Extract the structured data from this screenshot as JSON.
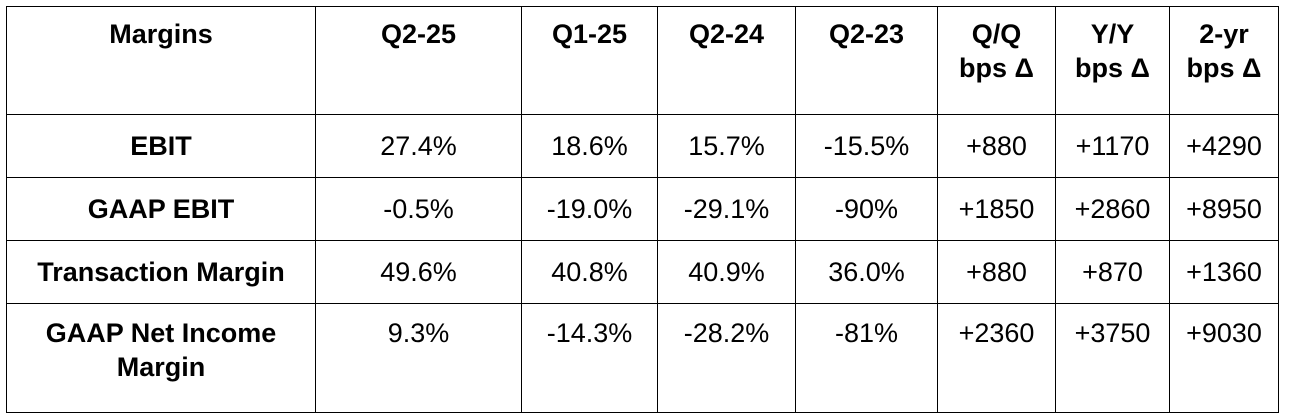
{
  "table": {
    "headers": [
      {
        "line1": "Margins",
        "line2": ""
      },
      {
        "line1": "Q2-25",
        "line2": ""
      },
      {
        "line1": "Q1-25",
        "line2": ""
      },
      {
        "line1": "Q2-24",
        "line2": ""
      },
      {
        "line1": "Q2-23",
        "line2": ""
      },
      {
        "line1": "Q/Q",
        "line2": "bps Δ"
      },
      {
        "line1": "Y/Y",
        "line2": "bps Δ"
      },
      {
        "line1": "2-yr",
        "line2": "bps Δ"
      }
    ],
    "rows": [
      {
        "label": "EBIT",
        "label2": "",
        "values": [
          "27.4%",
          "18.6%",
          "15.7%",
          "-15.5%",
          "+880",
          "+1170",
          "+4290"
        ]
      },
      {
        "label": "GAAP EBIT",
        "label2": "",
        "values": [
          "-0.5%",
          "-19.0%",
          "-29.1%",
          "-90%",
          "+1850",
          "+2860",
          "+8950"
        ]
      },
      {
        "label": "Transaction Margin",
        "label2": "",
        "values": [
          "49.6%",
          "40.8%",
          "40.9%",
          "36.0%",
          "+880",
          "+870",
          "+1360"
        ]
      },
      {
        "label": "GAAP Net Income",
        "label2": "Margin",
        "values": [
          "9.3%",
          "-14.3%",
          "-28.2%",
          "-81%",
          "+2360",
          "+3750",
          "+9030"
        ]
      }
    ]
  }
}
